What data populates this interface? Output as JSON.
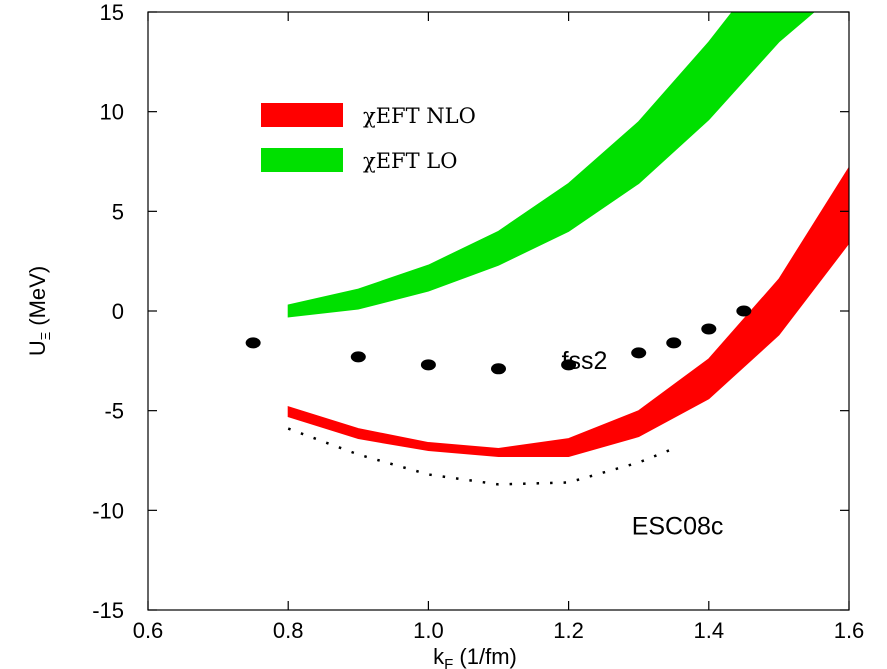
{
  "chart_data": {
    "type": "area",
    "xlabel": "k",
    "xlabel_sub": "F",
    "xlabel_units": " (1/fm)",
    "ylabel": "U",
    "ylabel_sub": "Ξ",
    "ylabel_units": " (MeV)",
    "xlim": [
      0.6,
      1.6
    ],
    "ylim": [
      -15,
      15
    ],
    "xticks": [
      0.6,
      0.8,
      1.0,
      1.2,
      1.4,
      1.6
    ],
    "xtick_labels": [
      "0.6",
      "0.8",
      "1.0",
      "1.2",
      "1.4",
      "1.6"
    ],
    "yticks": [
      -15,
      -10,
      -5,
      0,
      5,
      10,
      15
    ],
    "ytick_labels": [
      "-15",
      "-10",
      "-5",
      "0",
      "5",
      "10",
      "15"
    ],
    "legend_position": "top-left",
    "grid": false,
    "series": [
      {
        "name": "χEFT NLO",
        "kind": "band",
        "color": "#ff0000",
        "x": [
          0.8,
          0.9,
          1.0,
          1.1,
          1.2,
          1.3,
          1.4,
          1.5,
          1.6
        ],
        "lower": [
          -5.3,
          -6.4,
          -7.0,
          -7.3,
          -7.3,
          -6.3,
          -4.4,
          -1.2,
          3.4
        ],
        "upper": [
          -4.8,
          -5.9,
          -6.6,
          -6.9,
          -6.4,
          -5.0,
          -2.4,
          1.6,
          7.2
        ]
      },
      {
        "name": "χEFT LO",
        "kind": "band",
        "color": "#00e000",
        "x": [
          0.8,
          0.9,
          1.0,
          1.1,
          1.2,
          1.3,
          1.4,
          1.5,
          1.55
        ],
        "lower": [
          -0.3,
          0.1,
          1.0,
          2.3,
          4.0,
          6.4,
          9.6,
          13.5,
          15.0
        ],
        "upper": [
          0.3,
          1.1,
          2.3,
          4.0,
          6.4,
          9.5,
          13.5,
          18.0,
          20.0
        ]
      },
      {
        "label": "fss2",
        "kind": "points",
        "color": "#000000",
        "x": [
          0.75,
          0.9,
          1.0,
          1.1,
          1.2,
          1.3,
          1.35,
          1.4,
          1.45
        ],
        "y": [
          -1.6,
          -2.3,
          -2.7,
          -2.9,
          -2.7,
          -2.1,
          -1.6,
          -0.9,
          0.0
        ]
      },
      {
        "label": "ESC08c",
        "kind": "dotted-line",
        "color": "#000000",
        "x": [
          0.8,
          0.9,
          1.0,
          1.1,
          1.2,
          1.3,
          1.35
        ],
        "y": [
          -5.9,
          -7.2,
          -8.2,
          -8.7,
          -8.6,
          -7.6,
          -6.9
        ]
      }
    ],
    "annotations": [
      {
        "text": "fss2",
        "x": 1.19,
        "y": -2.9
      },
      {
        "text": "ESC08c",
        "x": 1.29,
        "y": -11.2
      }
    ]
  }
}
